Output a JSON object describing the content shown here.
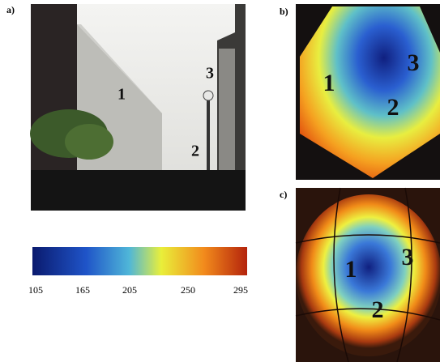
{
  "panels": {
    "a": {
      "label": "a)",
      "markers": [
        "1",
        "2",
        "3"
      ]
    },
    "b": {
      "label": "b)",
      "markers": [
        "1",
        "2",
        "3"
      ]
    },
    "c": {
      "label": "c)",
      "markers": [
        "1",
        "2",
        "3"
      ]
    }
  },
  "colorbar": {
    "ticks": [
      "105",
      "165",
      "205",
      "250",
      "295"
    ]
  }
}
